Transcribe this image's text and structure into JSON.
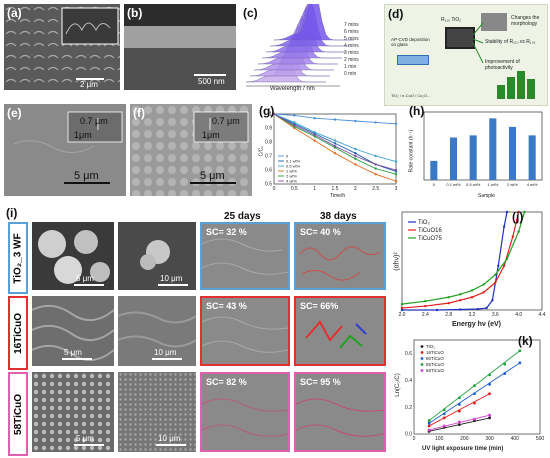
{
  "panels": {
    "a": {
      "tag": "(a)",
      "scale": "2 μm"
    },
    "b": {
      "tag": "(b)",
      "scale": "500 nm"
    },
    "c": {
      "tag": "(c)",
      "xlabel": "Wavelength / nm",
      "series_labels": [
        "7 mins",
        "6 mins",
        "5 mins",
        "4 mins",
        "3 mins",
        "2 mins",
        "1 min",
        "0 min"
      ]
    },
    "d": {
      "tag": "(d)",
      "device_label": "R₁₁₀ TiO₂",
      "boxes": [
        "Changes the morphology",
        "Stability of R₁₁₀ vs R₁₀₁",
        "Improvement of photoactivity"
      ],
      "left_text": "AP-CVD deposition on glass",
      "bottom_text": "TiO₂ / e-CuO / Cu₂O..."
    },
    "e": {
      "tag": "(e)",
      "thickness": "0.7 μm",
      "scale_small": "1μm",
      "scale": "5 μm"
    },
    "f": {
      "tag": "(f)",
      "thickness": "0.7 μm",
      "scale_small": "1μm",
      "scale": "5 μm"
    },
    "g": {
      "tag": "(g)",
      "xlabel": "Time/h",
      "ylabel": "C/C₀"
    },
    "h": {
      "tag": "(h)",
      "xlabel": "Sample",
      "ylabel": "Rate constant (h⁻¹)"
    },
    "i": {
      "tag": "(i)",
      "day25": "25 days",
      "day38": "38 days"
    },
    "j": {
      "tag": "(j)",
      "xlabel": "Energy hν (eV)",
      "ylabel": "(αhν)²"
    },
    "k": {
      "tag": "(k)",
      "xlabel": "UV light exposure time (min)",
      "ylabel": "Ln(C₀/C)"
    }
  },
  "grid_rows": [
    {
      "label": "TiO₂_3 WF",
      "color": "#5aa0d8",
      "scale1": "5 μm",
      "scale2": "10 μm",
      "sc25": "SC= 32 %",
      "sc38": "SC= 40 %"
    },
    {
      "label": "16TiCuO",
      "color": "#e03030",
      "scale1": "5 μm",
      "scale2": "10 μm",
      "sc25": "SC= 43 %",
      "sc38": "SC= 66%"
    },
    {
      "label": "58TiCuO",
      "color": "#e060b0",
      "scale1": "5 μm",
      "scale2": "10 μm",
      "sc25": "SC= 82 %",
      "sc38": "SC= 95 %"
    }
  ],
  "chart_data": [
    {
      "id": "g",
      "type": "line",
      "x": [
        0,
        0.5,
        1,
        1.5,
        2,
        2.5,
        3
      ],
      "xlim": [
        0,
        3
      ],
      "ylim": [
        0.5,
        1.0
      ],
      "xticks": [
        "0",
        "0.5",
        "1",
        "1.5",
        "2",
        "2.5",
        "3"
      ],
      "yticks": [
        "0.5",
        "0.6",
        "0.7",
        "0.8",
        "0.9",
        "1"
      ],
      "legend_position": "bottom-left",
      "series": [
        {
          "name": "0",
          "color": "#4a90d9",
          "values": [
            1.0,
            0.99,
            0.97,
            0.96,
            0.95,
            0.94,
            0.93
          ]
        },
        {
          "name": "0.1 wt%",
          "color": "#2060b0",
          "values": [
            1.0,
            0.93,
            0.86,
            0.79,
            0.72,
            0.64,
            0.59
          ]
        },
        {
          "name": "0.5 wt%",
          "color": "#3aa0d0",
          "values": [
            1.0,
            0.94,
            0.87,
            0.81,
            0.75,
            0.7,
            0.66
          ]
        },
        {
          "name": "1 wt%",
          "color": "#e07020",
          "values": [
            1.0,
            0.9,
            0.81,
            0.72,
            0.64,
            0.57,
            0.52
          ]
        },
        {
          "name": "2 wt%",
          "color": "#2aa040",
          "values": [
            1.0,
            0.91,
            0.84,
            0.76,
            0.68,
            0.61,
            0.57
          ]
        },
        {
          "name": "4 wt%",
          "color": "#8050a0",
          "values": [
            1.0,
            0.92,
            0.85,
            0.77,
            0.7,
            0.64,
            0.6
          ]
        }
      ]
    },
    {
      "id": "h",
      "type": "bar",
      "categories": [
        "0",
        "0.1 wt%",
        "0.5 wt%",
        "1 wt%",
        "2 wt%",
        "4 wt%"
      ],
      "values": [
        0.045,
        0.1,
        0.105,
        0.145,
        0.125,
        0.105
      ],
      "ylim": [
        0,
        0.16
      ],
      "color": "#3a78c8"
    },
    {
      "id": "j",
      "type": "line",
      "xlim": [
        2.0,
        4.4
      ],
      "ylim": [
        0,
        1
      ],
      "xticks": [
        "2.0",
        "2.2",
        "2.4",
        "2.6",
        "2.8",
        "3.0",
        "3.2",
        "3.4",
        "3.6",
        "3.8",
        "4.0",
        "4.2",
        "4.4"
      ],
      "legend_position": "top-left",
      "series": [
        {
          "name": "TiO₂",
          "color": "#2030c0",
          "x": [
            2.0,
            2.6,
            3.0,
            3.3,
            3.45,
            3.55,
            3.65,
            3.75,
            3.8
          ],
          "y": [
            0.0,
            0.0,
            0.005,
            0.01,
            0.02,
            0.1,
            0.45,
            0.85,
            1.0
          ]
        },
        {
          "name": "TiCuO16",
          "color": "#e02020",
          "x": [
            2.0,
            2.4,
            2.8,
            3.0,
            3.2,
            3.4,
            3.6,
            3.75,
            3.9,
            4.0
          ],
          "y": [
            0.02,
            0.04,
            0.07,
            0.1,
            0.13,
            0.18,
            0.28,
            0.45,
            0.75,
            1.0
          ]
        },
        {
          "name": "TiCuO75",
          "color": "#20a020",
          "x": [
            2.0,
            2.4,
            2.8,
            3.0,
            3.2,
            3.4,
            3.6,
            3.8,
            4.0,
            4.1
          ],
          "y": [
            0.06,
            0.09,
            0.13,
            0.16,
            0.2,
            0.26,
            0.36,
            0.52,
            0.8,
            1.0
          ]
        }
      ]
    },
    {
      "id": "k",
      "type": "scatter",
      "xlim": [
        0,
        500
      ],
      "ylim": [
        0,
        0.7
      ],
      "xticks": [
        "0",
        "100",
        "200",
        "300",
        "400",
        "500"
      ],
      "yticks": [
        "0.0",
        "0.2",
        "0.4",
        "0.6"
      ],
      "legend_position": "top-left",
      "series": [
        {
          "name": "TiO₂",
          "color": "#202020",
          "x": [
            60,
            120,
            180,
            240,
            300
          ],
          "y": [
            0.02,
            0.05,
            0.07,
            0.1,
            0.12
          ]
        },
        {
          "name": "16TiCuO",
          "color": "#e02020",
          "x": [
            60,
            120,
            180,
            240,
            300
          ],
          "y": [
            0.06,
            0.12,
            0.17,
            0.23,
            0.3
          ]
        },
        {
          "name": "50TiCuO",
          "color": "#2060d0",
          "x": [
            60,
            120,
            180,
            240,
            300,
            360,
            420
          ],
          "y": [
            0.08,
            0.15,
            0.22,
            0.3,
            0.37,
            0.45,
            0.53
          ]
        },
        {
          "name": "55TiCuO",
          "color": "#20a040",
          "x": [
            60,
            120,
            180,
            240,
            300,
            360,
            420
          ],
          "y": [
            0.1,
            0.18,
            0.27,
            0.36,
            0.44,
            0.52,
            0.62
          ]
        },
        {
          "name": "66TiCuO",
          "color": "#d040d0",
          "x": [
            60,
            120,
            180,
            240,
            300
          ],
          "y": [
            0.03,
            0.06,
            0.09,
            0.11,
            0.14
          ]
        }
      ]
    }
  ]
}
